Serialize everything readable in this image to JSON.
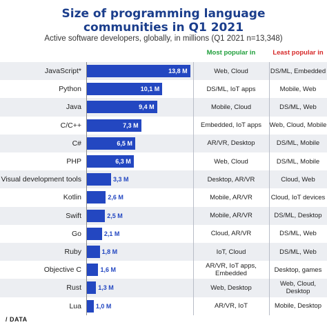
{
  "chart_data": {
    "type": "bar",
    "orientation": "horizontal",
    "title": "Size of programming language communities in Q1 2021",
    "subtitle": "Active software developers, globally, in millions (Q1 2021 n=13,348)",
    "categories": [
      "JavaScript*",
      "Python",
      "Java",
      "C/C++",
      "C#",
      "PHP",
      "Visual development tools",
      "Kotlin",
      "Swift",
      "Go",
      "Ruby",
      "Objective C",
      "Rust",
      "Lua"
    ],
    "values": [
      13.8,
      10.1,
      9.4,
      7.3,
      6.5,
      6.3,
      3.3,
      2.6,
      2.5,
      2.1,
      1.8,
      1.6,
      1.3,
      1.0
    ],
    "value_labels": [
      "13,8 M",
      "10,1 M",
      "9,4 M",
      "7,3 M",
      "6,5 M",
      "6,3 M",
      "3,3 M",
      "2,6 M",
      "2,5 M",
      "2,1 M",
      "1,8 M",
      "1,6 M",
      "1,3 M",
      "1,0 M"
    ],
    "columns": {
      "most_popular_header": "Most popular in",
      "least_popular_header": "Least popular in"
    },
    "most_popular_in": [
      "Web, Cloud",
      "DS/ML, IoT apps",
      "Mobile, Cloud",
      "Embedded, IoT apps",
      "AR/VR, Desktop",
      "Web, Cloud",
      "Desktop, AR/VR",
      "Mobile, AR/VR",
      "Mobile, AR/VR",
      "Cloud, AR/VR",
      "IoT, Cloud",
      "AR/VR, IoT apps, Embedded",
      "Web, Desktop",
      "AR/VR, IoT"
    ],
    "least_popular_in": [
      "DS/ML, Embedded",
      "Mobile, Web",
      "DS/ML, Web",
      "Web, Cloud, Mobile",
      "DS/ML, Mobile",
      "DS/ML, Mobile",
      "Cloud, Web",
      "Cloud, IoT devices",
      "DS/ML, Desktop",
      "DS/ML, Web",
      "DS/ML, Web",
      "Desktop, games",
      "Web, Cloud, Desktop",
      "Mobile, Desktop"
    ],
    "colors": {
      "bar": "#2347c1",
      "title": "#1b3e8c",
      "most_header": "#1e9e3a",
      "least_header": "#d62828",
      "row_alt": "#eceef2"
    }
  },
  "footer": {
    "logo_text": "/ DATA"
  }
}
